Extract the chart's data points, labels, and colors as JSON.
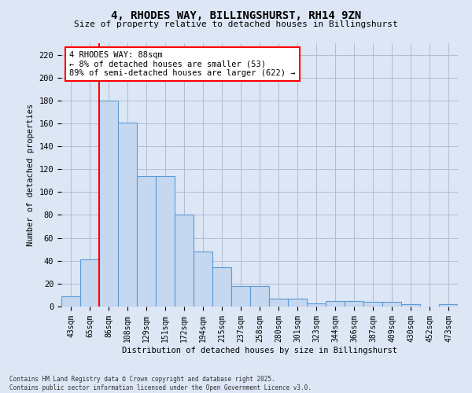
{
  "title_line1": "4, RHODES WAY, BILLINGSHURST, RH14 9ZN",
  "title_line2": "Size of property relative to detached houses in Billingshurst",
  "xlabel": "Distribution of detached houses by size in Billingshurst",
  "ylabel": "Number of detached properties",
  "categories": [
    "43sqm",
    "65sqm",
    "86sqm",
    "108sqm",
    "129sqm",
    "151sqm",
    "172sqm",
    "194sqm",
    "215sqm",
    "237sqm",
    "258sqm",
    "280sqm",
    "301sqm",
    "323sqm",
    "344sqm",
    "366sqm",
    "387sqm",
    "409sqm",
    "430sqm",
    "452sqm",
    "473sqm"
  ],
  "values": [
    9,
    41,
    180,
    161,
    114,
    114,
    80,
    48,
    34,
    18,
    18,
    7,
    7,
    3,
    5,
    5,
    4,
    4,
    2,
    0,
    2
  ],
  "bar_color": "#c5d8f0",
  "bar_edge_color": "#5b9bd5",
  "vline_x": 1.5,
  "vline_color": "red",
  "annotation_text": "4 RHODES WAY: 88sqm\n← 8% of detached houses are smaller (53)\n89% of semi-detached houses are larger (622) →",
  "annotation_box_color": "white",
  "annotation_box_edge_color": "red",
  "ylim": [
    0,
    230
  ],
  "yticks": [
    0,
    20,
    40,
    60,
    80,
    100,
    120,
    140,
    160,
    180,
    200,
    220
  ],
  "footer_text": "Contains HM Land Registry data © Crown copyright and database right 2025.\nContains public sector information licensed under the Open Government Licence v3.0.",
  "bg_color": "#dce6f5",
  "plot_bg_color": "#dce6f5",
  "grid_color": "#b0bcd0"
}
